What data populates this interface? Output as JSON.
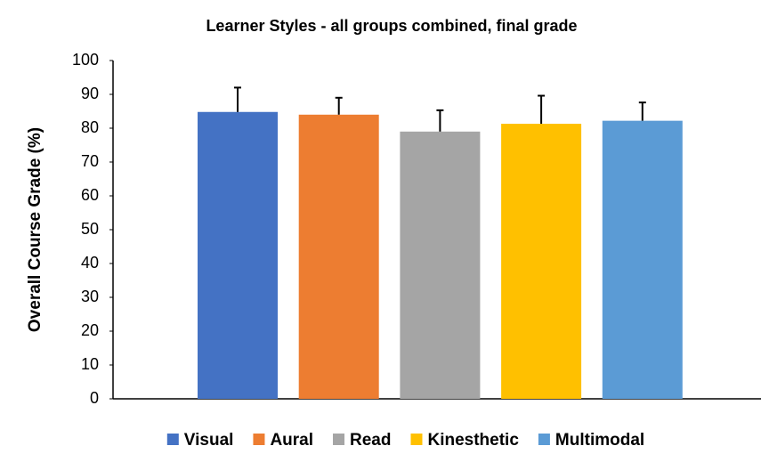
{
  "chart_data": {
    "type": "bar",
    "title": "Learner Styles - all groups combined, final grade",
    "ylabel": "Overall Course Grade (%)",
    "ylim": [
      0,
      100
    ],
    "yticks": [
      0,
      10,
      20,
      30,
      40,
      50,
      60,
      70,
      80,
      90,
      100
    ],
    "series": [
      {
        "name": "Visual",
        "color": "#4472c4",
        "values": [
          84.8
        ],
        "errors": [
          7.2
        ]
      },
      {
        "name": "Aural",
        "color": "#ed7d31",
        "values": [
          84
        ],
        "errors": [
          5
        ]
      },
      {
        "name": "Read",
        "color": "#a5a5a5",
        "values": [
          79
        ],
        "errors": [
          6.3
        ]
      },
      {
        "name": "Kinesthetic",
        "color": "#ffc000",
        "values": [
          81.3
        ],
        "errors": [
          8.3
        ]
      },
      {
        "name": "Multimodal",
        "color": "#5b9bd5",
        "values": [
          82.2
        ],
        "errors": [
          5.4
        ]
      }
    ]
  }
}
